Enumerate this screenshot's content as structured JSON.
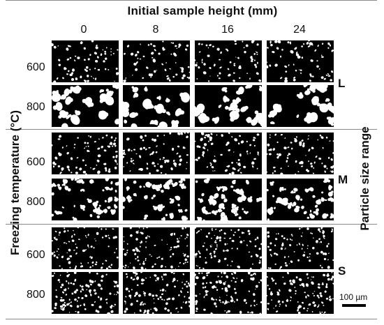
{
  "figure": {
    "top_title": "Initial sample height (mm)",
    "column_headers": [
      "0",
      "8",
      "16",
      "24"
    ],
    "left_axis_label": "Freezing temperature (°C)",
    "right_axis_label": "Particle size range",
    "groups": [
      {
        "label": "L",
        "rows": [
          "600",
          "800"
        ]
      },
      {
        "label": "M",
        "rows": [
          "600",
          "800"
        ]
      },
      {
        "label": "S",
        "rows": [
          "600",
          "800"
        ]
      }
    ],
    "scale_bar": "100 µm",
    "panel_image": "binary micrograph (white particles on black background)"
  }
}
